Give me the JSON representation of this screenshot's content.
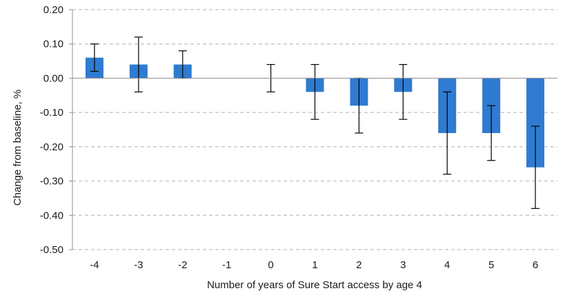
{
  "chart_data": {
    "type": "bar",
    "title": "",
    "xlabel": "Number of years of Sure Start access by age 4",
    "ylabel": "Change from baseline, %",
    "categories": [
      "-4",
      "-3",
      "-2",
      "-1",
      "0",
      "1",
      "2",
      "3",
      "4",
      "5",
      "6"
    ],
    "values": [
      0.06,
      0.04,
      0.04,
      null,
      0.0,
      -0.04,
      -0.08,
      -0.04,
      -0.16,
      -0.16,
      -0.26
    ],
    "error_low": [
      0.02,
      -0.04,
      0.0,
      null,
      -0.04,
      -0.12,
      -0.16,
      -0.12,
      -0.28,
      -0.24,
      -0.38
    ],
    "error_high": [
      0.1,
      0.12,
      0.08,
      null,
      0.04,
      0.04,
      0.0,
      0.04,
      -0.04,
      -0.08,
      -0.14
    ],
    "ylim": [
      -0.5,
      0.2
    ],
    "yticks": [
      0.2,
      0.1,
      0.0,
      -0.1,
      -0.2,
      -0.3,
      -0.4,
      -0.5
    ],
    "ytick_labels": [
      "0.20",
      "0.10",
      "0.00",
      "-0.10",
      "-0.20",
      "-0.30",
      "-0.40",
      "-0.50"
    ],
    "grid": true,
    "bar_color": "#2f7bd1",
    "grid_color": "#bfbfbf",
    "error_color": "#000000"
  }
}
